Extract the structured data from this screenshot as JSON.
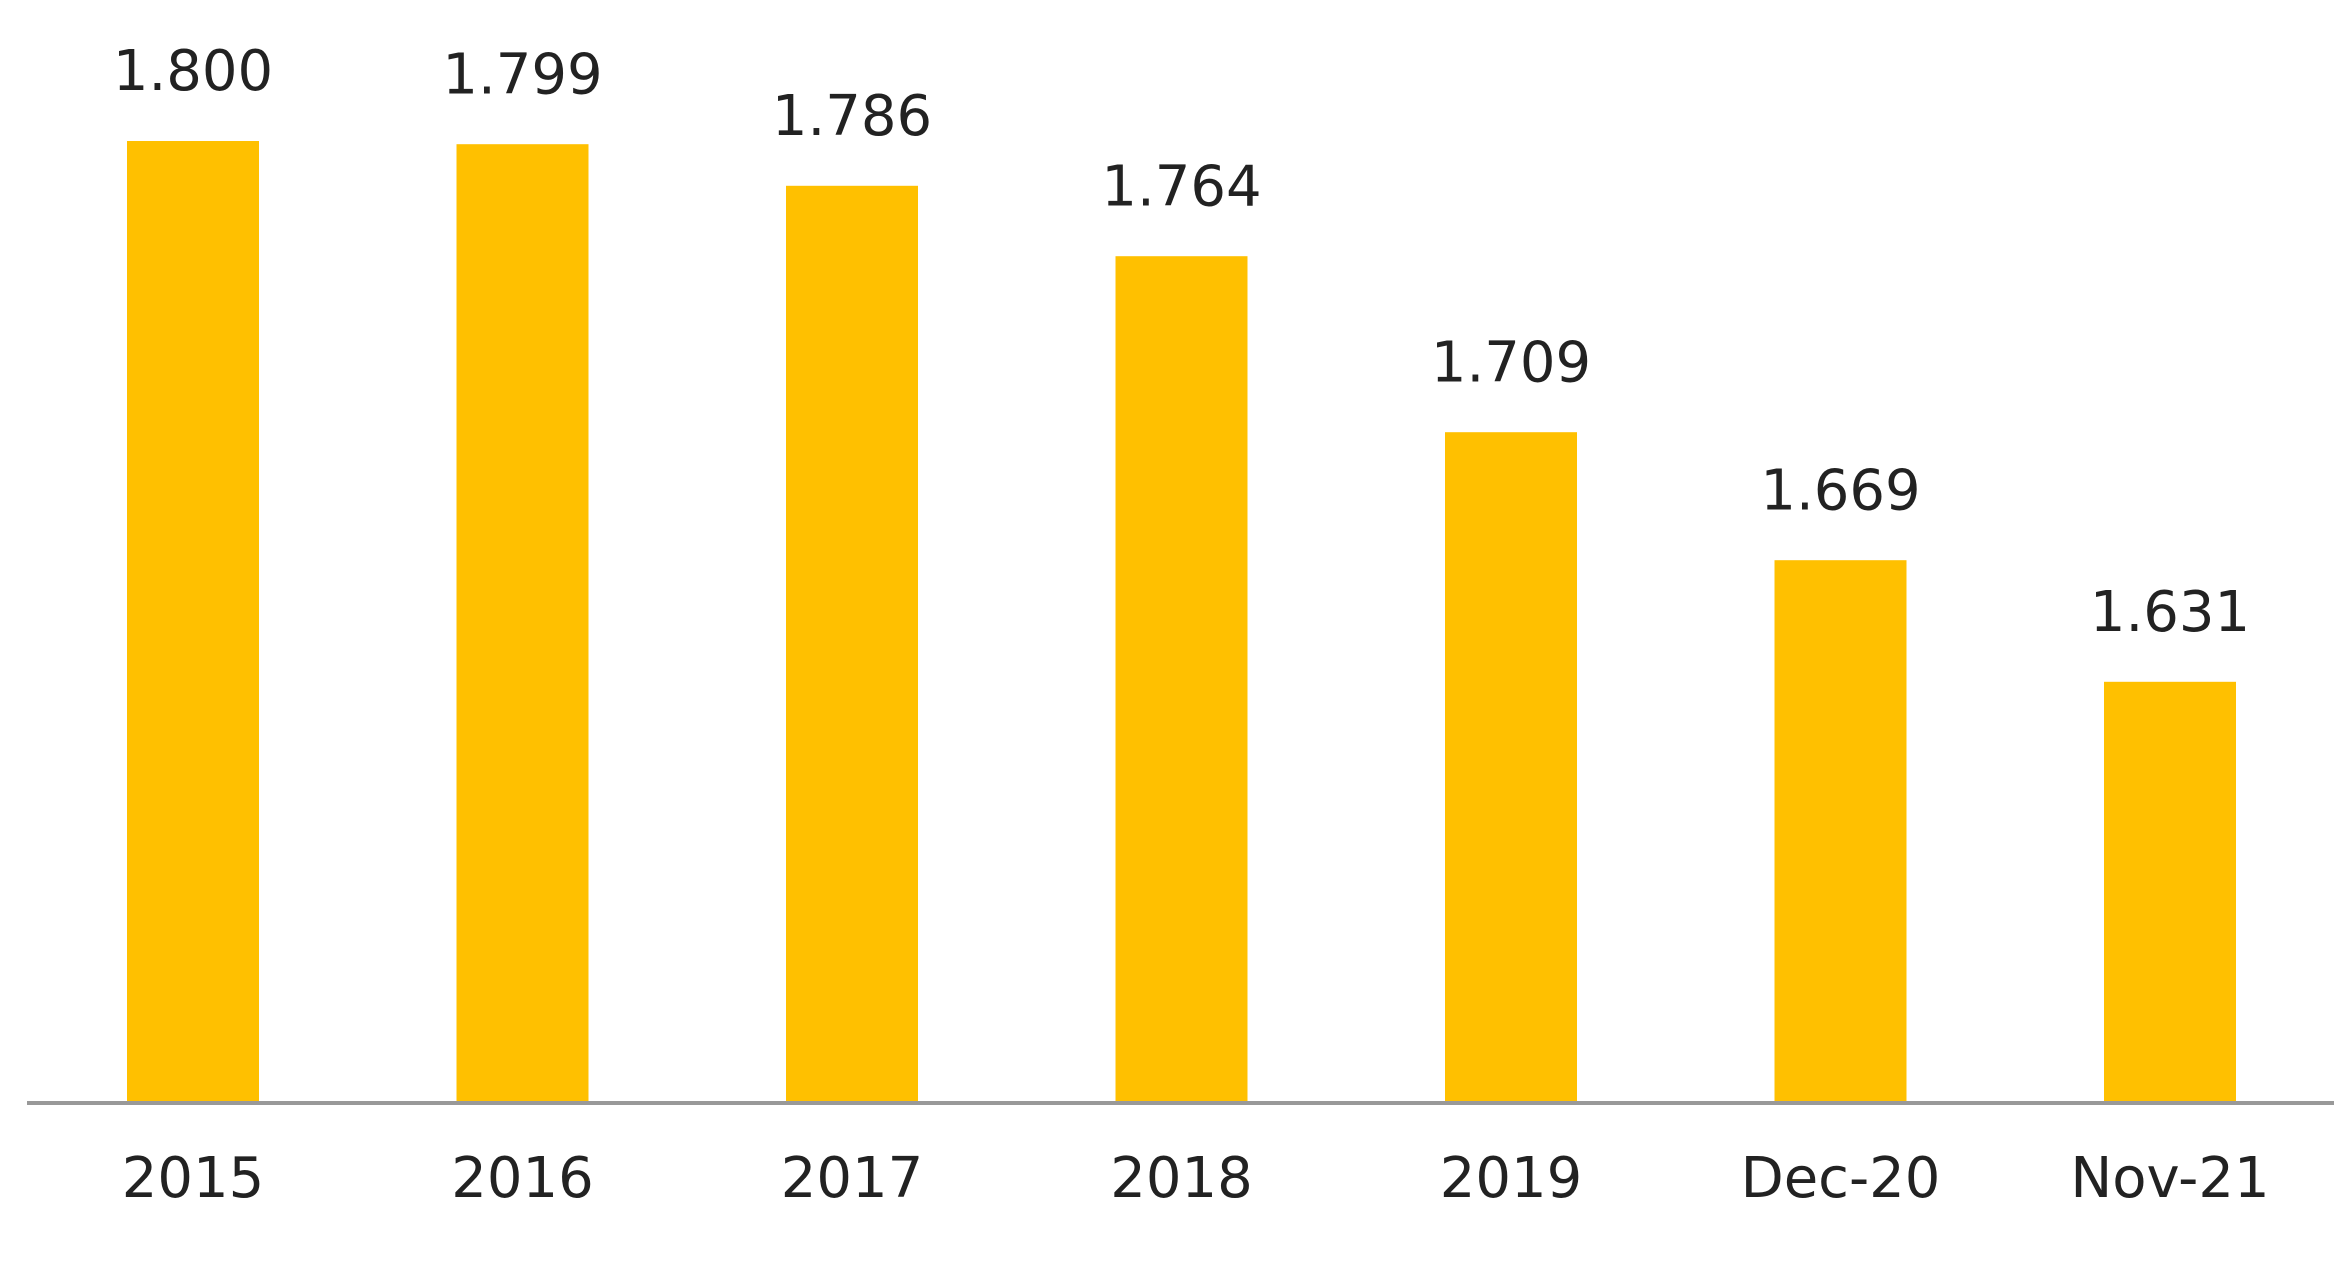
{
  "chart_data": {
    "type": "bar",
    "categories": [
      "2015",
      "2016",
      "2017",
      "2018",
      "2019",
      "Dec-20",
      "Nov-21"
    ],
    "values": [
      1.8,
      1.799,
      1.786,
      1.764,
      1.709,
      1.669,
      1.631
    ],
    "value_labels": [
      "1.800",
      "1.799",
      "1.786",
      "1.764",
      "1.709",
      "1.669",
      "1.631"
    ],
    "color": "#ffc000",
    "ylim": [
      1.5,
      1.8
    ]
  }
}
